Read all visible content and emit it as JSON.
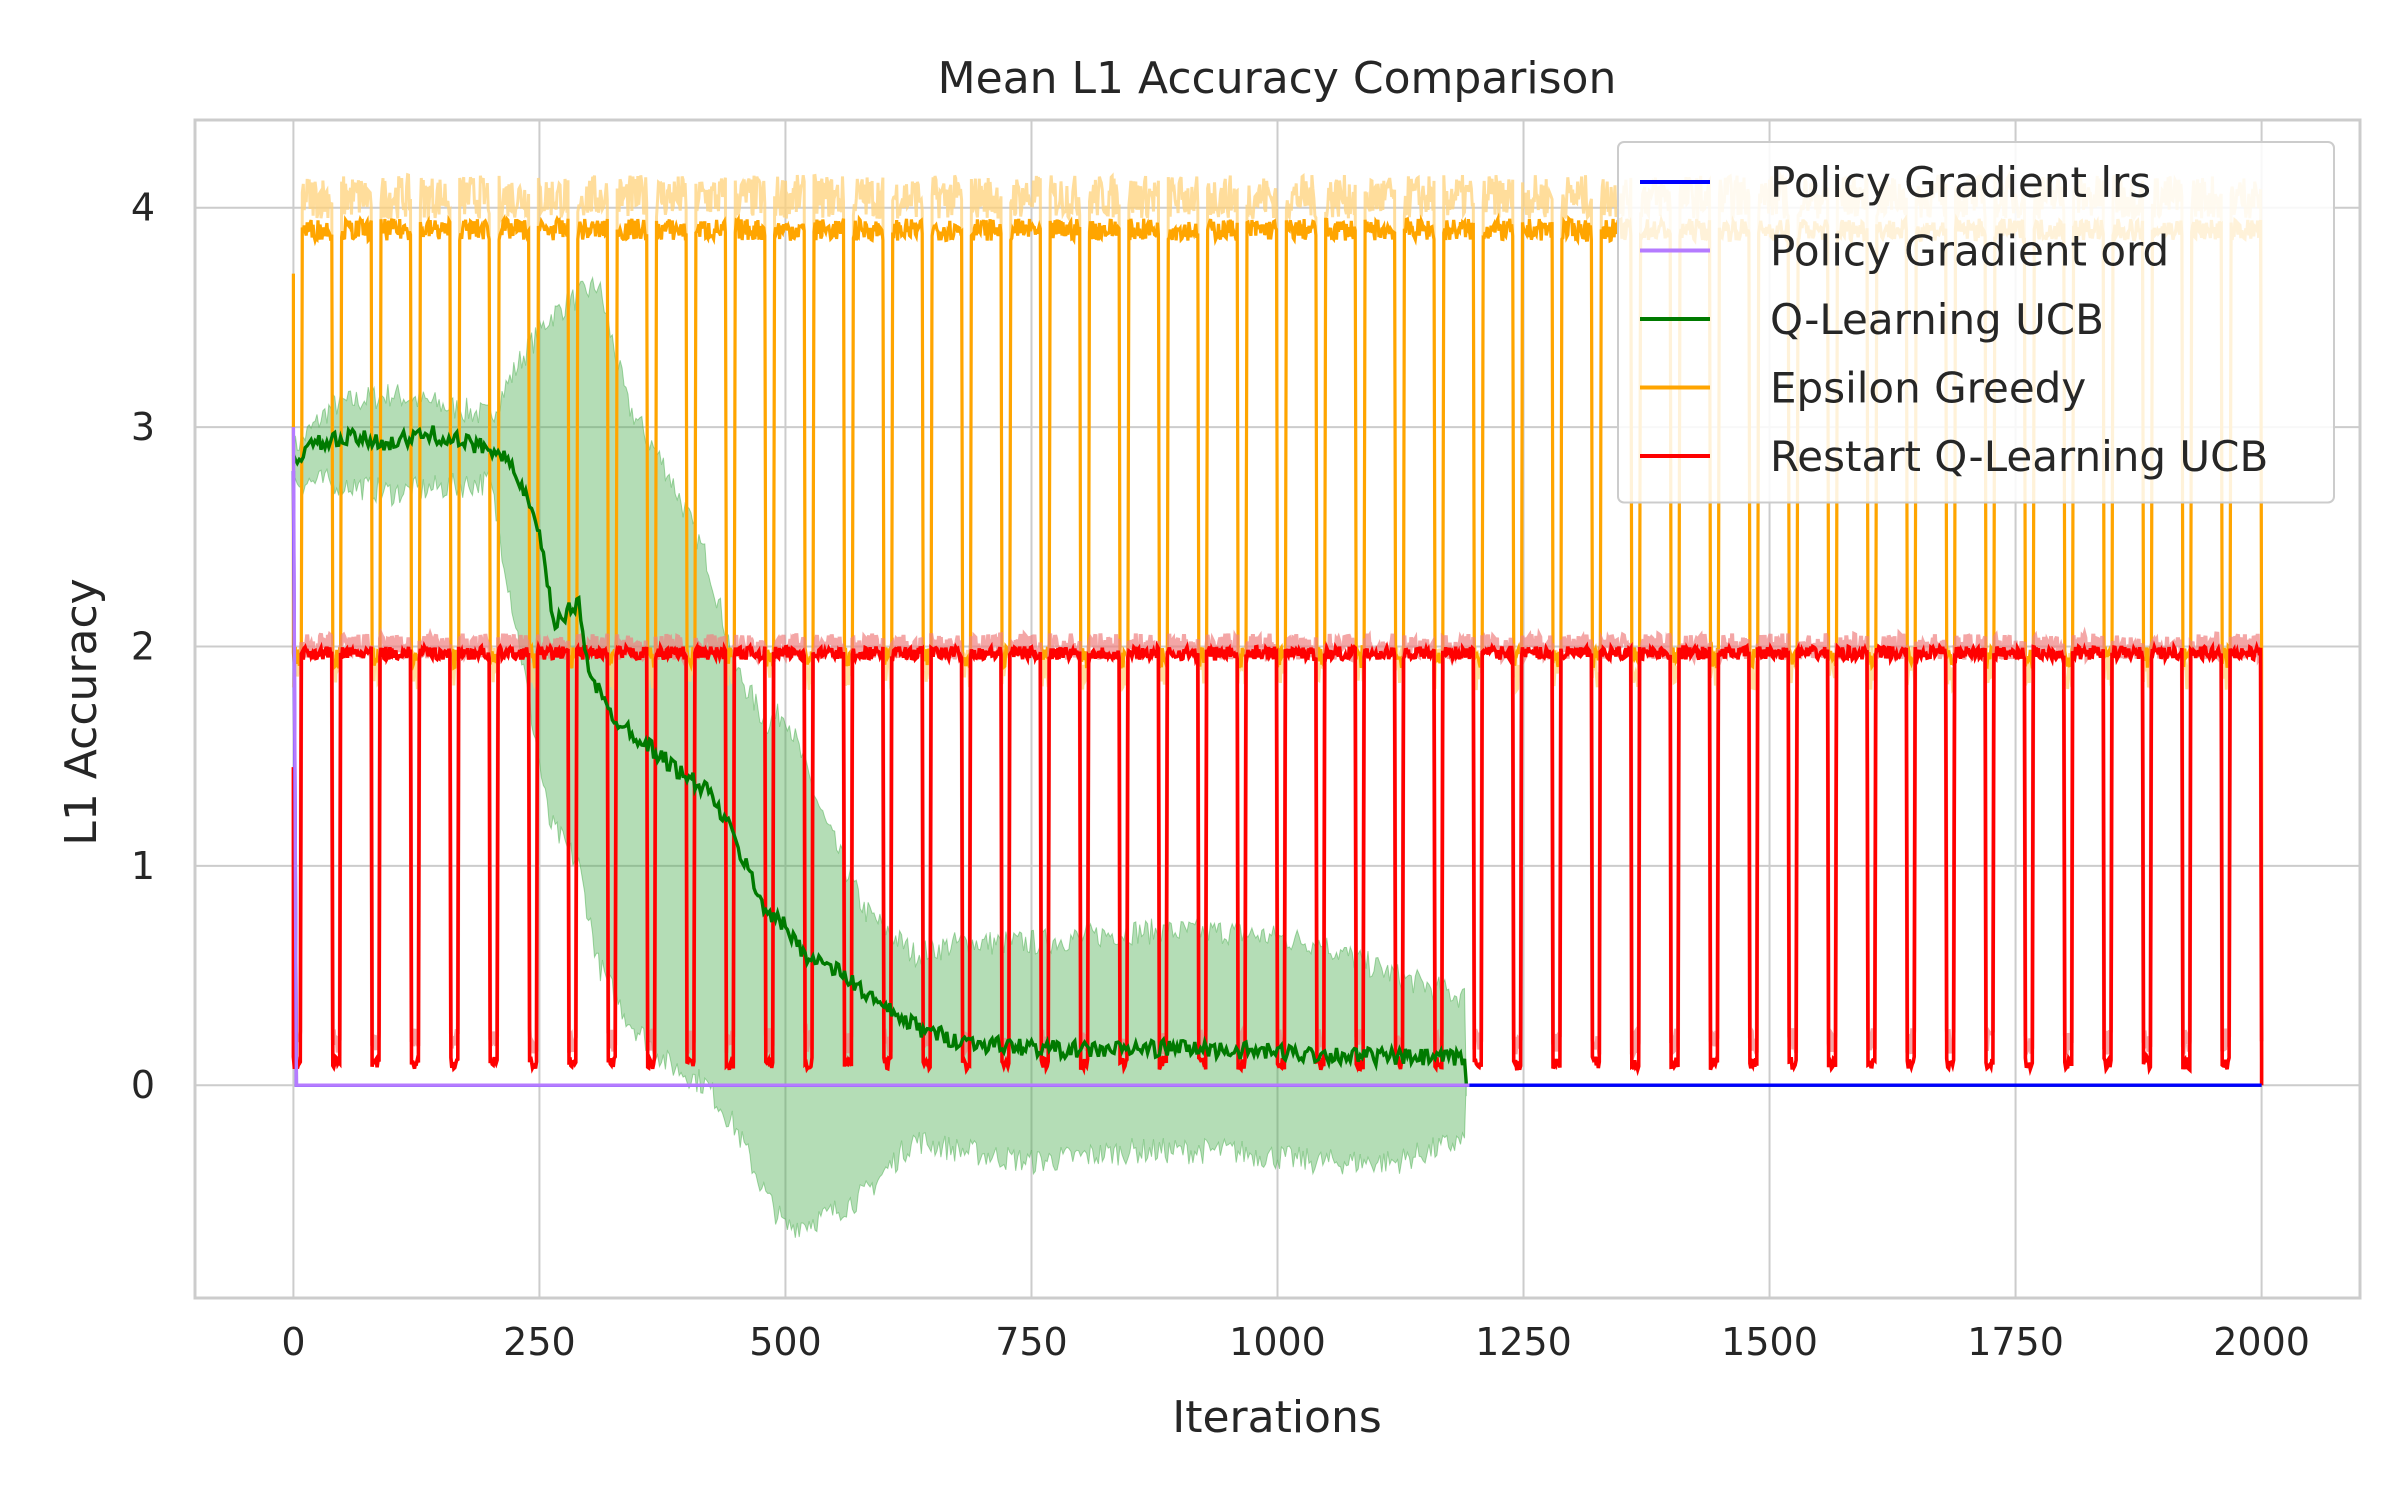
{
  "chart_data": {
    "type": "line",
    "title": "Mean L1 Accuracy Comparison",
    "xlabel": "Iterations",
    "ylabel": "L1 Accuracy",
    "xlim": [
      -100,
      2100
    ],
    "ylim": [
      -0.97,
      4.4
    ],
    "xticks": [
      "0",
      "250",
      "500",
      "750",
      "1000",
      "1250",
      "1500",
      "1750",
      "2000"
    ],
    "yticks": [
      "0",
      "1",
      "2",
      "3",
      "4"
    ],
    "grid": true,
    "legend_position": "top-right",
    "series": [
      {
        "name": "Policy Gradient lrs",
        "color": "#0000ff",
        "summary": "starts near 2.8 at iteration 0, drops to 0 immediately, stays at 0 through 2000",
        "points": [
          [
            0,
            2.8
          ],
          [
            3,
            0
          ],
          [
            2000,
            0
          ]
        ]
      },
      {
        "name": "Policy Gradient ord",
        "color": "#b57bff",
        "summary": "starts at 3.0 at iteration 0, drops to 0 immediately, stays at 0 until about 1195",
        "points": [
          [
            0,
            3.0
          ],
          [
            3,
            0
          ],
          [
            1195,
            0
          ]
        ]
      },
      {
        "name": "Q-Learning UCB",
        "color": "#007a00",
        "band_color": "#4caf50",
        "summary": "about 2.9 until 220, declines to about 0.2 by 650, about 0.15 until 1190, then 0 until 2000",
        "mean": [
          [
            0,
            2.85
          ],
          [
            20,
            2.92
          ],
          [
            60,
            2.95
          ],
          [
            100,
            2.93
          ],
          [
            140,
            2.97
          ],
          [
            180,
            2.92
          ],
          [
            210,
            2.9
          ],
          [
            235,
            2.7
          ],
          [
            250,
            2.5
          ],
          [
            265,
            2.1
          ],
          [
            290,
            2.2
          ],
          [
            300,
            1.9
          ],
          [
            320,
            1.7
          ],
          [
            360,
            1.55
          ],
          [
            400,
            1.4
          ],
          [
            420,
            1.35
          ],
          [
            440,
            1.2
          ],
          [
            460,
            1.0
          ],
          [
            480,
            0.8
          ],
          [
            500,
            0.72
          ],
          [
            520,
            0.6
          ],
          [
            560,
            0.5
          ],
          [
            600,
            0.35
          ],
          [
            640,
            0.25
          ],
          [
            680,
            0.2
          ],
          [
            720,
            0.18
          ],
          [
            800,
            0.16
          ],
          [
            900,
            0.17
          ],
          [
            1000,
            0.15
          ],
          [
            1100,
            0.13
          ],
          [
            1190,
            0.12
          ],
          [
            1192,
            0
          ],
          [
            2000,
            0
          ]
        ],
        "band_upper": [
          [
            0,
            2.9
          ],
          [
            40,
            3.1
          ],
          [
            100,
            3.15
          ],
          [
            200,
            3.05
          ],
          [
            230,
            3.3
          ],
          [
            260,
            3.5
          ],
          [
            290,
            3.6
          ],
          [
            310,
            3.65
          ],
          [
            340,
            3.1
          ],
          [
            380,
            2.8
          ],
          [
            420,
            2.4
          ],
          [
            450,
            1.9
          ],
          [
            480,
            1.65
          ],
          [
            500,
            1.7
          ],
          [
            540,
            1.2
          ],
          [
            580,
            0.8
          ],
          [
            630,
            0.6
          ],
          [
            680,
            0.65
          ],
          [
            750,
            0.65
          ],
          [
            850,
            0.7
          ],
          [
            950,
            0.7
          ],
          [
            1040,
            0.65
          ],
          [
            1120,
            0.5
          ],
          [
            1190,
            0.4
          ],
          [
            1192,
            0
          ],
          [
            2000,
            0
          ]
        ],
        "band_lower": [
          [
            0,
            2.75
          ],
          [
            40,
            2.75
          ],
          [
            100,
            2.7
          ],
          [
            200,
            2.75
          ],
          [
            230,
            2.0
          ],
          [
            260,
            1.2
          ],
          [
            290,
            1.0
          ],
          [
            310,
            0.55
          ],
          [
            340,
            0.3
          ],
          [
            380,
            0.1
          ],
          [
            420,
            0.0
          ],
          [
            450,
            -0.2
          ],
          [
            480,
            -0.5
          ],
          [
            500,
            -0.65
          ],
          [
            540,
            -0.6
          ],
          [
            580,
            -0.5
          ],
          [
            630,
            -0.25
          ],
          [
            680,
            -0.3
          ],
          [
            750,
            -0.35
          ],
          [
            850,
            -0.3
          ],
          [
            950,
            -0.3
          ],
          [
            1040,
            -0.35
          ],
          [
            1120,
            -0.35
          ],
          [
            1190,
            -0.25
          ],
          [
            1192,
            0
          ],
          [
            2000,
            0
          ]
        ]
      },
      {
        "name": "Epsilon Greedy",
        "color": "#ffa500",
        "band_color": "#ffd27a",
        "summary": "periodic oscillation between about 3.9 and about 1.95 with period about 40 iterations from 0 to 2000, drops to 0 at 2000",
        "high": 3.9,
        "low": 1.95,
        "period": 40,
        "x_range": [
          0,
          2000
        ]
      },
      {
        "name": "Restart Q-Learning UCB",
        "color": "#ff0000",
        "band_color": "#f08080",
        "summary": "mostly about 2.0 with frequent dips to about 0.1 roughly every 40 iterations from 0 to 2000, starts near 1.45, drops to 0 at 2000",
        "high": 1.97,
        "low": 0.1,
        "period": 40,
        "x_range": [
          0,
          2000
        ]
      }
    ]
  }
}
